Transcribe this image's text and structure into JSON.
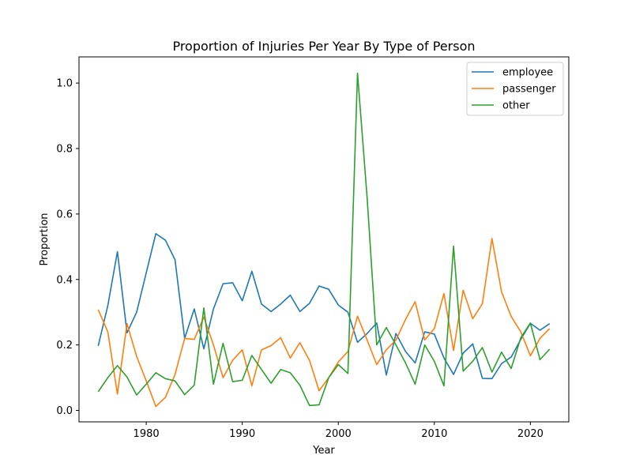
{
  "chart_data": {
    "type": "line",
    "title": "Proportion of Injuries Per Year By Type of Person",
    "xlabel": "Year",
    "ylabel": "Proportion",
    "xlim": [
      1973,
      2024
    ],
    "ylim": [
      -0.035,
      1.08
    ],
    "xticks": [
      1980,
      1990,
      2000,
      2010,
      2020
    ],
    "yticks": [
      0.0,
      0.2,
      0.4,
      0.6,
      0.8,
      1.0
    ],
    "ytick_labels": [
      "0.0",
      "0.2",
      "0.4",
      "0.6",
      "0.8",
      "1.0"
    ],
    "grid": false,
    "legend_position": "top-right",
    "x": [
      1975,
      1976,
      1977,
      1978,
      1979,
      1980,
      1981,
      1982,
      1983,
      1984,
      1985,
      1986,
      1987,
      1988,
      1989,
      1990,
      1991,
      1992,
      1993,
      1994,
      1995,
      1996,
      1997,
      1998,
      1999,
      2000,
      2001,
      2002,
      2003,
      2004,
      2005,
      2006,
      2007,
      2008,
      2009,
      2010,
      2011,
      2012,
      2013,
      2014,
      2015,
      2016,
      2017,
      2018,
      2019,
      2020,
      2021,
      2022
    ],
    "series": [
      {
        "name": "employee",
        "color": "#1f77b4",
        "values": [
          0.197,
          0.32,
          0.485,
          0.237,
          0.3,
          0.42,
          0.54,
          0.52,
          0.46,
          0.22,
          0.31,
          0.188,
          0.31,
          0.387,
          0.39,
          0.335,
          0.425,
          0.325,
          0.302,
          0.325,
          0.352,
          0.302,
          0.327,
          0.38,
          0.37,
          0.322,
          0.3,
          0.208,
          0.235,
          0.267,
          0.108,
          0.235,
          0.18,
          0.145,
          0.24,
          0.233,
          0.16,
          0.11,
          0.175,
          0.203,
          0.098,
          0.097,
          0.143,
          0.163,
          0.217,
          0.266,
          0.245,
          0.265
        ]
      },
      {
        "name": "passenger",
        "color": "#ff7f0e",
        "values": [
          0.308,
          0.24,
          0.05,
          0.265,
          0.165,
          0.09,
          0.012,
          0.04,
          0.11,
          0.22,
          0.217,
          0.285,
          0.2,
          0.1,
          0.153,
          0.185,
          0.075,
          0.185,
          0.198,
          0.222,
          0.16,
          0.207,
          0.153,
          0.06,
          0.1,
          0.148,
          0.18,
          0.288,
          0.215,
          0.14,
          0.185,
          0.215,
          0.278,
          0.332,
          0.215,
          0.25,
          0.357,
          0.183,
          0.367,
          0.28,
          0.326,
          0.525,
          0.362,
          0.287,
          0.24,
          0.167,
          0.22,
          0.25
        ]
      },
      {
        "name": "other",
        "color": "#2ca02c",
        "values": [
          0.057,
          0.1,
          0.137,
          0.102,
          0.047,
          0.08,
          0.115,
          0.097,
          0.09,
          0.048,
          0.077,
          0.313,
          0.08,
          0.205,
          0.088,
          0.092,
          0.168,
          0.125,
          0.083,
          0.125,
          0.115,
          0.077,
          0.015,
          0.017,
          0.1,
          0.14,
          0.113,
          1.03,
          0.65,
          0.2,
          0.253,
          0.2,
          0.145,
          0.08,
          0.2,
          0.15,
          0.075,
          0.502,
          0.12,
          0.15,
          0.192,
          0.117,
          0.178,
          0.128,
          0.222,
          0.267,
          0.155,
          0.187
        ]
      }
    ]
  }
}
